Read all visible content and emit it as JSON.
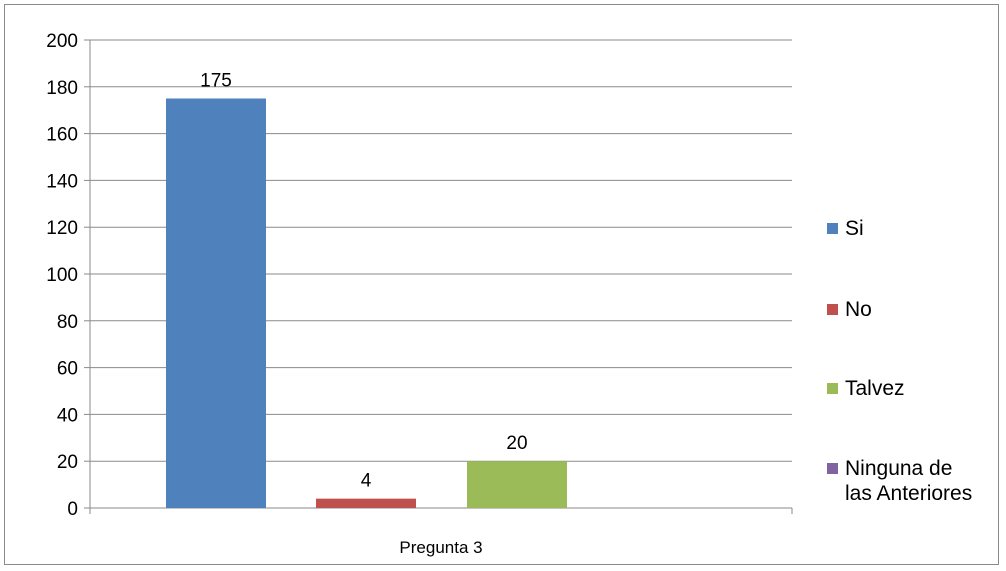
{
  "chart_data": {
    "type": "bar",
    "categories": [
      "Pregunta 3"
    ],
    "series": [
      {
        "name": "Si",
        "values": [
          175
        ],
        "color": "#4f81bd",
        "label": "175"
      },
      {
        "name": "No",
        "values": [
          4
        ],
        "color": "#c0504d",
        "label": "4"
      },
      {
        "name": "Talvez",
        "values": [
          20
        ],
        "color": "#9bbb59",
        "label": "20"
      },
      {
        "name": "Ninguna de las Anteriores",
        "legend_lines": [
          "Ninguna de",
          "las Anteriores"
        ],
        "values": [
          0
        ],
        "color": "#8064a2",
        "label": ""
      }
    ],
    "yticks": [
      "0",
      "20",
      "40",
      "60",
      "80",
      "100",
      "120",
      "140",
      "160",
      "180",
      "200"
    ],
    "ylim": [
      0,
      200
    ],
    "grid": true,
    "legend_position": "right",
    "title": "",
    "xlabel": "",
    "ylabel": ""
  }
}
